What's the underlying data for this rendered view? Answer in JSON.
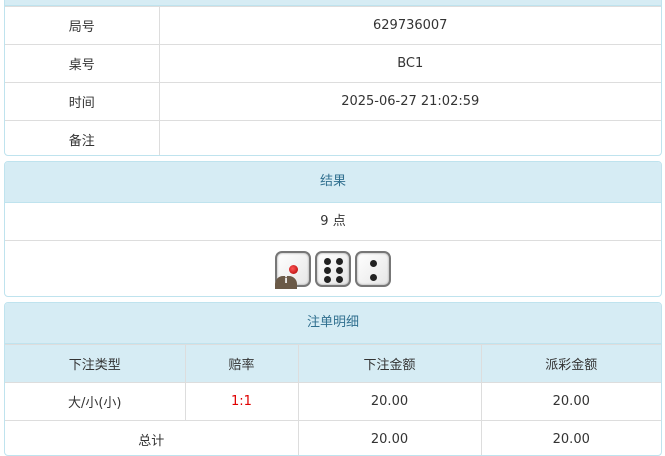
{
  "info": {
    "rows": [
      {
        "label": "局号",
        "value": "629736007"
      },
      {
        "label": "桌号",
        "value": "BC1"
      },
      {
        "label": "时间",
        "value": "2025-06-27 21:02:59"
      },
      {
        "label": "备注",
        "value": ""
      }
    ]
  },
  "result": {
    "title": "结果",
    "points": "9 点",
    "dice": [
      1,
      6,
      2
    ],
    "info_badge": "i"
  },
  "bets": {
    "title": "注单明细",
    "headers": [
      "下注类型",
      "赔率",
      "下注金额",
      "派彩金额"
    ],
    "rows": [
      {
        "type": "大/小(小)",
        "odds": "1:1",
        "amount": "20.00",
        "payout": "20.00"
      }
    ],
    "total": {
      "label": "总计",
      "amount": "20.00",
      "payout": "20.00"
    },
    "odds_color": "#e00000"
  }
}
